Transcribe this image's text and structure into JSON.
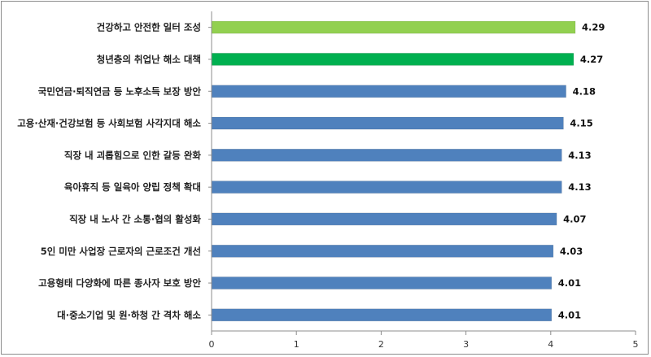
{
  "chart_data": {
    "type": "bar",
    "orientation": "horizontal",
    "categories": [
      "건강하고 안전한 일터 조성",
      "청년층의 취업난 해소 대책",
      "국민연금·퇴직연금 등 노후소득 보장 방안",
      "고용·산재·건강보험 등 사회보험 사각지대 해소",
      "직장 내 괴롭힘으로 인한 갈등 완화",
      "육아휴직 등 일육아 양립 정책 확대",
      "직장 내 노사 간 소통·협의 활성화",
      "5인 미만 사업장 근로자의 근로조건 개선",
      "고용형태 다양화에 따른 종사자 보호 방안",
      "대·중소기업 및 원·하청 간 격차 해소"
    ],
    "values": [
      4.29,
      4.27,
      4.18,
      4.15,
      4.13,
      4.13,
      4.07,
      4.03,
      4.01,
      4.01
    ],
    "value_labels": [
      "4.29",
      "4.27",
      "4.18",
      "4.15",
      "4.13",
      "4.13",
      "4.07",
      "4.03",
      "4.01",
      "4.01"
    ],
    "bar_colors": [
      "#92D050",
      "#00B050",
      "#4F81BD",
      "#4F81BD",
      "#4F81BD",
      "#4F81BD",
      "#4F81BD",
      "#4F81BD",
      "#4F81BD",
      "#4F81BD"
    ],
    "xlim": [
      0,
      5
    ],
    "x_ticks": [
      "0",
      "1",
      "2",
      "3",
      "4",
      "5"
    ],
    "grid": false,
    "legend": "none"
  }
}
